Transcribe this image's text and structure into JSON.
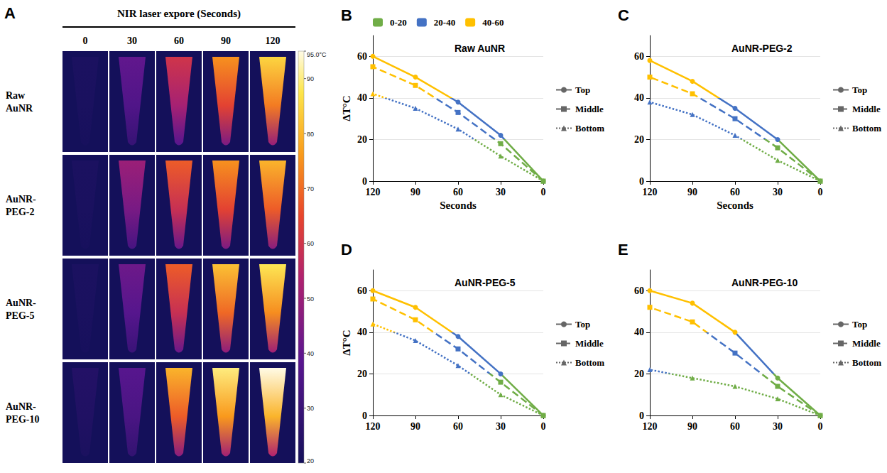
{
  "chart_data": [
    {
      "panel": "A",
      "type": "thermal_image",
      "title": "NIR laser expore (Seconds)",
      "columns": [
        0,
        30,
        60,
        90,
        120
      ],
      "rows": [
        "Raw AuNR",
        "AuNR-PEG-2",
        "AuNR-PEG-5",
        "AuNR-PEG-10"
      ],
      "values": [
        [
          22,
          40,
          60,
          75,
          85
        ],
        [
          22,
          50,
          68,
          75,
          80
        ],
        [
          22,
          42,
          68,
          82,
          88
        ],
        [
          24,
          38,
          80,
          90,
          95
        ]
      ],
      "colorbar": {
        "range": [
          20,
          95
        ],
        "ticks": [
          20,
          30,
          40,
          50,
          60,
          70,
          80,
          90,
          {
            "value": 95,
            "label": "95.0°C"
          }
        ]
      }
    },
    {
      "panel": "B",
      "type": "line",
      "title": "Raw AuNR",
      "xlabel": "Seconds",
      "ylabel": "ΔT°C",
      "xlim": [
        120,
        0
      ],
      "xticks": [
        0,
        30,
        60,
        90,
        120
      ],
      "ylim": [
        0,
        70
      ],
      "yticks": [
        0,
        20,
        40,
        60
      ],
      "legend": "right",
      "color_bands": [
        {
          "label": "0-20",
          "min": 0,
          "max": 20,
          "color": "#70ad47"
        },
        {
          "label": "20-40",
          "min": 20,
          "max": 40,
          "color": "#4472c4"
        },
        {
          "label": "40-60",
          "min": 40,
          "max": 60,
          "color": "#ffc000"
        }
      ],
      "x": [
        0,
        30,
        60,
        90,
        120
      ],
      "series": [
        {
          "name": "Top",
          "values": [
            0,
            22,
            38,
            50,
            60
          ],
          "line_style": "solid",
          "marker": "circle"
        },
        {
          "name": "Middle",
          "values": [
            0,
            18,
            33,
            46,
            55
          ],
          "line_style": "dashed",
          "marker": "rect"
        },
        {
          "name": "Bottom",
          "values": [
            0,
            12,
            25,
            35,
            42
          ],
          "line_style": "dotted",
          "marker": "triangle"
        }
      ]
    },
    {
      "panel": "C",
      "type": "line",
      "title": "AuNR-PEG-2",
      "xlabel": "Seconds",
      "xlim": [
        120,
        0
      ],
      "xticks": [
        0,
        30,
        60,
        90,
        120
      ],
      "ylim": [
        0,
        70
      ],
      "yticks": [
        0,
        20,
        40,
        60
      ],
      "legend": "right",
      "x": [
        0,
        30,
        60,
        90,
        120
      ],
      "series": [
        {
          "name": "Top",
          "values": [
            0,
            20,
            35,
            48,
            58
          ],
          "line_style": "solid",
          "marker": "circle"
        },
        {
          "name": "Middle",
          "values": [
            0,
            16,
            30,
            42,
            50
          ],
          "line_style": "dashed",
          "marker": "rect"
        },
        {
          "name": "Bottom",
          "values": [
            0,
            10,
            22,
            32,
            38
          ],
          "line_style": "dotted",
          "marker": "triangle"
        }
      ]
    },
    {
      "panel": "D",
      "type": "line",
      "title": "AuNR-PEG-5",
      "ylabel": "ΔT°C",
      "xlim": [
        120,
        0
      ],
      "xticks": [
        0,
        30,
        60,
        90,
        120
      ],
      "ylim": [
        0,
        70
      ],
      "yticks": [
        0,
        20,
        40,
        60
      ],
      "legend": "right",
      "x": [
        0,
        30,
        60,
        90,
        120
      ],
      "series": [
        {
          "name": "Top",
          "values": [
            0,
            20,
            38,
            52,
            60
          ],
          "line_style": "solid",
          "marker": "circle"
        },
        {
          "name": "Middle",
          "values": [
            0,
            16,
            32,
            46,
            56
          ],
          "line_style": "dashed",
          "marker": "rect"
        },
        {
          "name": "Bottom",
          "values": [
            0,
            10,
            24,
            36,
            44
          ],
          "line_style": "dotted",
          "marker": "triangle"
        }
      ]
    },
    {
      "panel": "E",
      "type": "line",
      "title": "AuNR-PEG-10",
      "xlim": [
        120,
        0
      ],
      "xticks": [
        0,
        30,
        60,
        90,
        120
      ],
      "ylim": [
        0,
        70
      ],
      "yticks": [
        0,
        20,
        40,
        60
      ],
      "legend": "right",
      "x": [
        0,
        30,
        60,
        90,
        120
      ],
      "series": [
        {
          "name": "Top",
          "values": [
            0,
            18,
            40,
            54,
            60
          ],
          "line_style": "solid",
          "marker": "circle"
        },
        {
          "name": "Middle",
          "values": [
            0,
            14,
            30,
            45,
            52
          ],
          "line_style": "dashed",
          "marker": "rect"
        },
        {
          "name": "Bottom",
          "values": [
            0,
            8,
            14,
            18,
            22
          ],
          "line_style": "dotted",
          "marker": "triangle"
        }
      ]
    }
  ]
}
